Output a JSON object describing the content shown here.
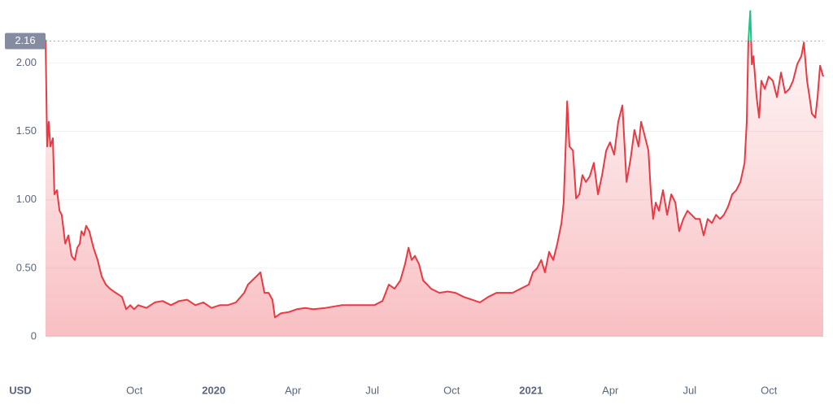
{
  "chart_data": {
    "type": "line",
    "currency": "USD",
    "current_price": 2.16,
    "color": "#ea3943",
    "above_color": "#16c784",
    "grid": true,
    "xlim": [
      2019.47,
      2021.921
    ],
    "xticks": [
      {
        "value": 2019.75,
        "label": "Oct"
      },
      2020,
      {
        "value": 2020.25,
        "label": "Apr"
      },
      {
        "value": 2020.5,
        "label": "Jul"
      },
      {
        "value": 2020.75,
        "label": "Oct"
      },
      2021,
      {
        "value": 2021.25,
        "label": "Apr"
      },
      {
        "value": 2021.5,
        "label": "Jul"
      },
      {
        "value": 2021.75,
        "label": "Oct"
      }
    ],
    "ylim": [
      0,
      2.46
    ],
    "yticks": [
      0,
      {
        "value": 0.5,
        "label": "0.50"
      },
      {
        "value": 1,
        "label": "1.00"
      },
      {
        "value": 1.5,
        "label": "1.50"
      },
      {
        "value": 2,
        "label": "2.00"
      }
    ],
    "x": [
      2019.47,
      2019.475,
      2019.48,
      2019.485,
      2019.493,
      2019.498,
      2019.506,
      2019.514,
      2019.521,
      2019.532,
      2019.542,
      2019.552,
      2019.562,
      2019.57,
      2019.578,
      2019.583,
      2019.591,
      2019.598,
      2019.608,
      2019.621,
      2019.634,
      2019.647,
      2019.66,
      2019.673,
      2019.685,
      2019.698,
      2019.711,
      2019.724,
      2019.737,
      2019.749,
      2019.762,
      2019.788,
      2019.814,
      2019.839,
      2019.865,
      2019.891,
      2019.916,
      2019.942,
      2019.967,
      2019.993,
      2020.019,
      2020.044,
      2020.07,
      2020.096,
      2020.108,
      2020.121,
      2020.134,
      2020.147,
      2020.16,
      2020.173,
      2020.185,
      2020.193,
      2020.211,
      2020.237,
      2020.262,
      2020.288,
      2020.314,
      2020.352,
      2020.403,
      2020.455,
      2020.506,
      2020.532,
      2020.552,
      2020.57,
      2020.588,
      2020.603,
      2020.614,
      2020.624,
      2020.634,
      2020.647,
      2020.66,
      2020.673,
      2020.685,
      2020.711,
      2020.737,
      2020.762,
      2020.788,
      2020.814,
      2020.839,
      2020.865,
      2020.891,
      2020.916,
      2020.942,
      2020.967,
      2020.993,
      2021.006,
      2021.019,
      2021.032,
      2021.044,
      2021.057,
      2021.07,
      2021.083,
      2021.096,
      2021.103,
      2021.111,
      2021.114,
      2021.121,
      2021.132,
      2021.142,
      2021.152,
      2021.162,
      2021.173,
      2021.185,
      2021.198,
      2021.211,
      2021.224,
      2021.237,
      2021.249,
      2021.262,
      2021.275,
      2021.288,
      2021.301,
      2021.314,
      2021.326,
      2021.339,
      2021.347,
      2021.357,
      2021.37,
      2021.378,
      2021.385,
      2021.393,
      2021.403,
      2021.416,
      2021.429,
      2021.442,
      2021.455,
      2021.467,
      2021.48,
      2021.493,
      2021.506,
      2021.519,
      2021.532,
      2021.544,
      2021.557,
      2021.57,
      2021.583,
      2021.596,
      2021.608,
      2021.621,
      2021.634,
      2021.647,
      2021.66,
      2021.673,
      2021.68,
      2021.685,
      2021.691,
      2021.696,
      2021.701,
      2021.711,
      2021.719,
      2021.726,
      2021.737,
      2021.749,
      2021.762,
      2021.775,
      2021.788,
      2021.801,
      2021.814,
      2021.826,
      2021.839,
      2021.852,
      2021.86,
      2021.87,
      2021.878,
      2021.885,
      2021.896,
      2021.903,
      2021.911,
      2021.921
    ],
    "values": [
      2.17,
      1.39,
      1.57,
      1.39,
      1.45,
      1.04,
      1.07,
      0.92,
      0.89,
      0.68,
      0.74,
      0.59,
      0.56,
      0.65,
      0.68,
      0.77,
      0.74,
      0.81,
      0.77,
      0.65,
      0.56,
      0.44,
      0.38,
      0.35,
      0.33,
      0.31,
      0.29,
      0.2,
      0.23,
      0.2,
      0.23,
      0.21,
      0.25,
      0.26,
      0.23,
      0.26,
      0.27,
      0.23,
      0.25,
      0.21,
      0.23,
      0.23,
      0.25,
      0.32,
      0.38,
      0.41,
      0.44,
      0.47,
      0.32,
      0.32,
      0.27,
      0.14,
      0.17,
      0.18,
      0.2,
      0.21,
      0.2,
      0.21,
      0.23,
      0.23,
      0.23,
      0.26,
      0.38,
      0.35,
      0.41,
      0.53,
      0.65,
      0.56,
      0.59,
      0.53,
      0.41,
      0.38,
      0.35,
      0.32,
      0.33,
      0.32,
      0.29,
      0.27,
      0.25,
      0.29,
      0.32,
      0.32,
      0.32,
      0.35,
      0.38,
      0.47,
      0.5,
      0.56,
      0.47,
      0.62,
      0.56,
      0.68,
      0.83,
      0.98,
      1.51,
      1.72,
      1.39,
      1.36,
      1.01,
      1.04,
      1.18,
      1.13,
      1.17,
      1.27,
      1.04,
      1.18,
      1.36,
      1.42,
      1.33,
      1.57,
      1.69,
      1.13,
      1.3,
      1.51,
      1.39,
      1.57,
      1.48,
      1.36,
      1.04,
      0.86,
      0.98,
      0.92,
      1.07,
      0.89,
      1.04,
      0.98,
      0.77,
      0.86,
      0.92,
      0.89,
      0.86,
      0.86,
      0.74,
      0.86,
      0.83,
      0.89,
      0.86,
      0.89,
      0.95,
      1.04,
      1.07,
      1.13,
      1.27,
      1.57,
      2.15,
      2.38,
      1.99,
      2.05,
      1.75,
      1.6,
      1.87,
      1.81,
      1.9,
      1.87,
      1.75,
      1.93,
      1.78,
      1.81,
      1.87,
      1.99,
      2.05,
      2.15,
      1.87,
      1.75,
      1.63,
      1.6,
      1.75,
      1.98,
      1.9
    ]
  }
}
